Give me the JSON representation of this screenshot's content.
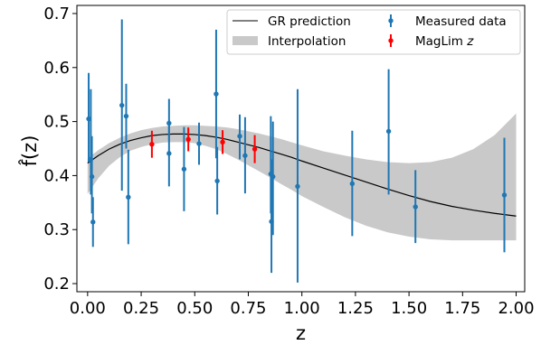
{
  "chart_data": {
    "type": "scatter",
    "xlabel": "z",
    "ylabel": "f̂(z)",
    "xlim": [
      -0.05,
      2.04
    ],
    "ylim": [
      0.185,
      0.715
    ],
    "xticks": [
      0.0,
      0.25,
      0.5,
      0.75,
      1.0,
      1.25,
      1.5,
      1.75,
      2.0
    ],
    "xtick_labels": [
      "0.00",
      "0.25",
      "0.50",
      "0.75",
      "1.00",
      "1.25",
      "1.50",
      "1.75",
      "2.00"
    ],
    "yticks": [
      0.2,
      0.3,
      0.4,
      0.5,
      0.6,
      0.7
    ],
    "ytick_labels": [
      "0.2",
      "0.3",
      "0.4",
      "0.5",
      "0.6",
      "0.7"
    ],
    "grid": false,
    "legend_position": "top-right",
    "legend": {
      "gr": "GR prediction",
      "interp": "Interpolation",
      "measured": "Measured data",
      "maglim_main": "MagLim ",
      "maglim_italic": "z"
    },
    "colors": {
      "measured": "#1f77b4",
      "maglim": "#ff0000",
      "band": "#c9c9c9",
      "line": "#000000"
    },
    "gr_prediction": {
      "x": [
        0.0,
        0.05,
        0.1,
        0.15,
        0.2,
        0.25,
        0.3,
        0.35,
        0.4,
        0.45,
        0.5,
        0.55,
        0.6,
        0.65,
        0.7,
        0.75,
        0.8,
        0.85,
        0.9,
        0.95,
        1.0,
        1.1,
        1.2,
        1.3,
        1.4,
        1.5,
        1.6,
        1.7,
        1.8,
        1.9,
        2.0
      ],
      "y": [
        0.423,
        0.437,
        0.449,
        0.458,
        0.465,
        0.47,
        0.474,
        0.476,
        0.477,
        0.477,
        0.476,
        0.474,
        0.471,
        0.467,
        0.462,
        0.457,
        0.452,
        0.446,
        0.44,
        0.434,
        0.427,
        0.414,
        0.401,
        0.388,
        0.375,
        0.363,
        0.352,
        0.343,
        0.336,
        0.33,
        0.325
      ]
    },
    "interpolation_band": {
      "x": [
        0.0,
        0.05,
        0.1,
        0.15,
        0.2,
        0.25,
        0.3,
        0.35,
        0.4,
        0.45,
        0.5,
        0.55,
        0.6,
        0.65,
        0.7,
        0.75,
        0.8,
        0.85,
        0.9,
        0.95,
        1.0,
        1.1,
        1.2,
        1.3,
        1.4,
        1.5,
        1.6,
        1.7,
        1.8,
        1.9,
        2.0
      ],
      "lower": [
        0.366,
        0.395,
        0.418,
        0.434,
        0.446,
        0.453,
        0.458,
        0.461,
        0.462,
        0.462,
        0.46,
        0.455,
        0.449,
        0.44,
        0.43,
        0.419,
        0.408,
        0.397,
        0.385,
        0.374,
        0.362,
        0.342,
        0.323,
        0.307,
        0.295,
        0.287,
        0.282,
        0.28,
        0.28,
        0.28,
        0.28
      ],
      "upper": [
        0.432,
        0.447,
        0.46,
        0.47,
        0.478,
        0.484,
        0.488,
        0.491,
        0.492,
        0.493,
        0.493,
        0.492,
        0.491,
        0.489,
        0.486,
        0.482,
        0.478,
        0.473,
        0.468,
        0.462,
        0.456,
        0.445,
        0.437,
        0.43,
        0.425,
        0.423,
        0.425,
        0.433,
        0.449,
        0.475,
        0.515
      ]
    },
    "measured": [
      {
        "x": 0.005,
        "y": 0.505,
        "lo": 0.425,
        "hi": 0.59
      },
      {
        "x": 0.015,
        "y": 0.43,
        "lo": 0.365,
        "hi": 0.56
      },
      {
        "x": 0.02,
        "y": 0.398,
        "lo": 0.33,
        "hi": 0.473
      },
      {
        "x": 0.025,
        "y": 0.314,
        "lo": 0.268,
        "hi": 0.36
      },
      {
        "x": 0.16,
        "y": 0.53,
        "lo": 0.372,
        "hi": 0.689
      },
      {
        "x": 0.18,
        "y": 0.51,
        "lo": 0.45,
        "hi": 0.57
      },
      {
        "x": 0.19,
        "y": 0.36,
        "lo": 0.273,
        "hi": 0.448
      },
      {
        "x": 0.38,
        "y": 0.497,
        "lo": 0.465,
        "hi": 0.542
      },
      {
        "x": 0.38,
        "y": 0.441,
        "lo": 0.38,
        "hi": 0.502
      },
      {
        "x": 0.45,
        "y": 0.412,
        "lo": 0.334,
        "hi": 0.49
      },
      {
        "x": 0.52,
        "y": 0.459,
        "lo": 0.42,
        "hi": 0.498
      },
      {
        "x": 0.6,
        "y": 0.551,
        "lo": 0.432,
        "hi": 0.67
      },
      {
        "x": 0.605,
        "y": 0.39,
        "lo": 0.328,
        "hi": 0.453
      },
      {
        "x": 0.71,
        "y": 0.473,
        "lo": 0.43,
        "hi": 0.513
      },
      {
        "x": 0.735,
        "y": 0.437,
        "lo": 0.367,
        "hi": 0.508
      },
      {
        "x": 0.855,
        "y": 0.403,
        "lo": 0.33,
        "hi": 0.51
      },
      {
        "x": 0.858,
        "y": 0.315,
        "lo": 0.22,
        "hi": 0.43
      },
      {
        "x": 0.865,
        "y": 0.398,
        "lo": 0.29,
        "hi": 0.5
      },
      {
        "x": 0.98,
        "y": 0.38,
        "lo": 0.202,
        "hi": 0.56
      },
      {
        "x": 1.235,
        "y": 0.385,
        "lo": 0.288,
        "hi": 0.483
      },
      {
        "x": 1.405,
        "y": 0.482,
        "lo": 0.365,
        "hi": 0.597
      },
      {
        "x": 1.53,
        "y": 0.342,
        "lo": 0.275,
        "hi": 0.41
      },
      {
        "x": 1.945,
        "y": 0.364,
        "lo": 0.258,
        "hi": 0.47
      }
    ],
    "maglim": [
      {
        "x": 0.3,
        "y": 0.458,
        "lo": 0.433,
        "hi": 0.483
      },
      {
        "x": 0.47,
        "y": 0.467,
        "lo": 0.445,
        "hi": 0.489
      },
      {
        "x": 0.63,
        "y": 0.462,
        "lo": 0.44,
        "hi": 0.484
      },
      {
        "x": 0.78,
        "y": 0.449,
        "lo": 0.423,
        "hi": 0.475
      }
    ]
  }
}
